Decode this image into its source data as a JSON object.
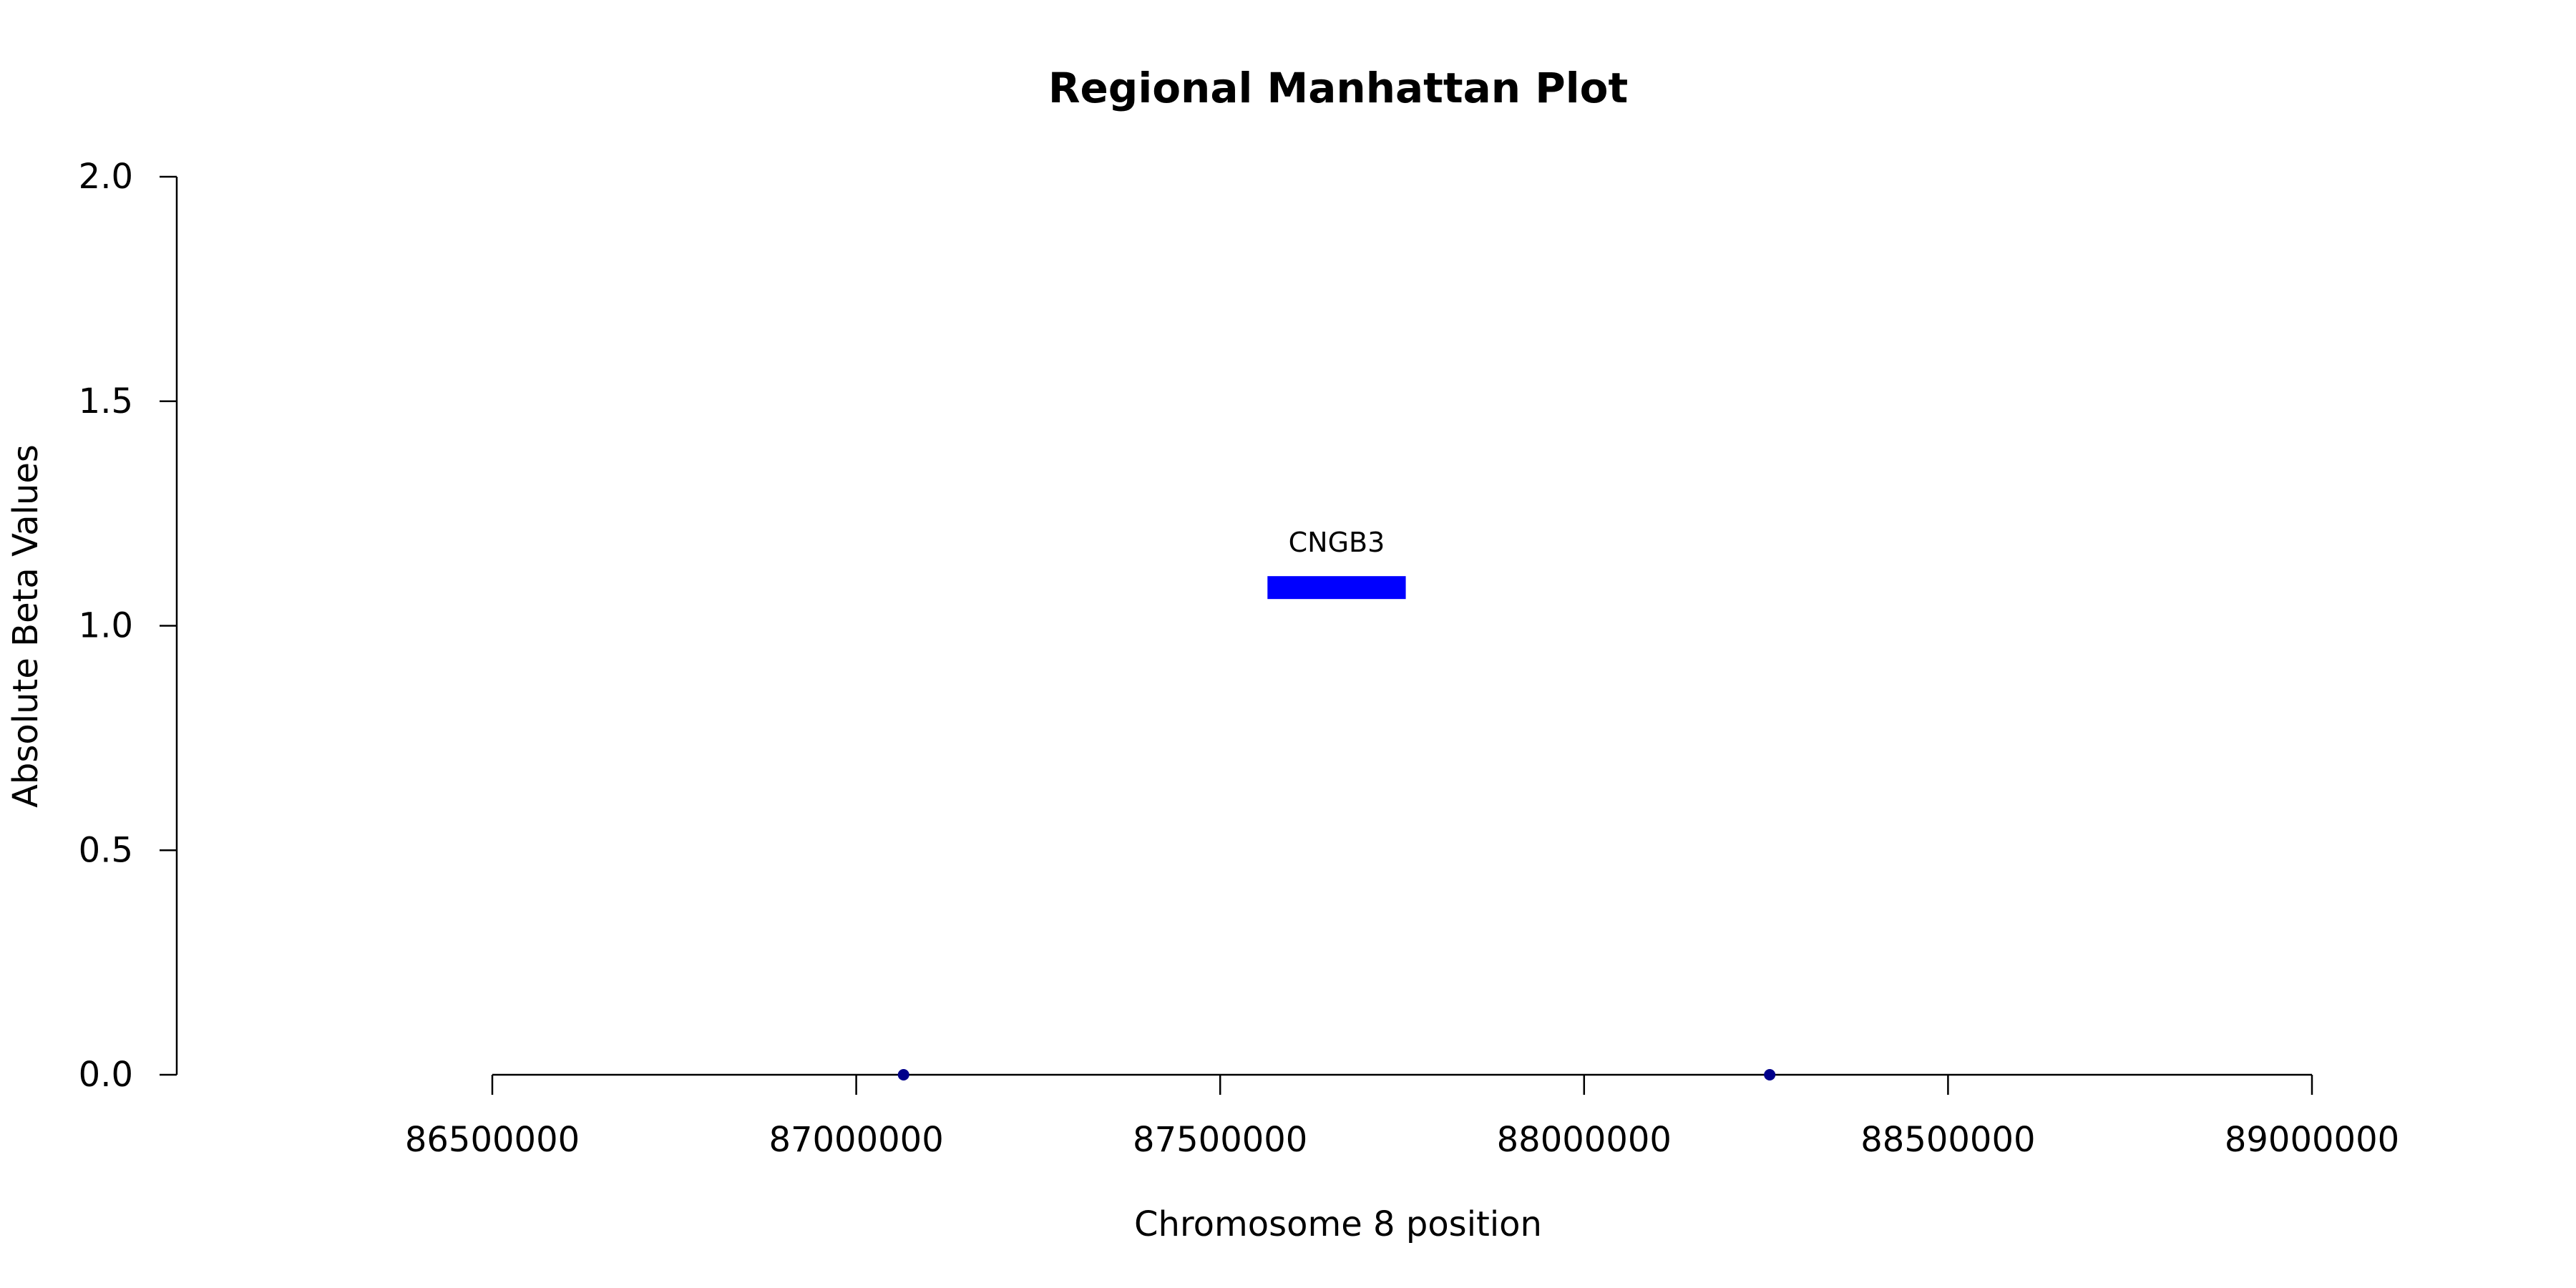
{
  "chart_data": {
    "type": "scatter",
    "title": "Regional Manhattan Plot",
    "xlabel": "Chromosome 8 position",
    "ylabel": "Absolute Beta Values",
    "xlim": [
      86500000,
      89000000
    ],
    "ylim": [
      0,
      2
    ],
    "xticks": [
      86500000,
      87000000,
      87500000,
      88000000,
      88500000,
      89000000
    ],
    "xtick_labels": [
      "86500000",
      "87000000",
      "87500000",
      "88000000",
      "88500000",
      "89000000"
    ],
    "yticks": [
      0,
      0.5,
      1,
      1.5,
      2
    ],
    "ytick_labels": [
      "0.0",
      "0.5",
      "1.0",
      "1.5",
      "2.0"
    ],
    "grid": false,
    "points": [
      {
        "x": 87065000,
        "y": 0.0
      },
      {
        "x": 88255000,
        "y": 0.0
      }
    ],
    "point_color": "#00008b",
    "genes": [
      {
        "name": "CNGB3",
        "start": 87565000,
        "end": 87755000,
        "y": 1.085
      }
    ],
    "gene_color": "#0000ff"
  }
}
